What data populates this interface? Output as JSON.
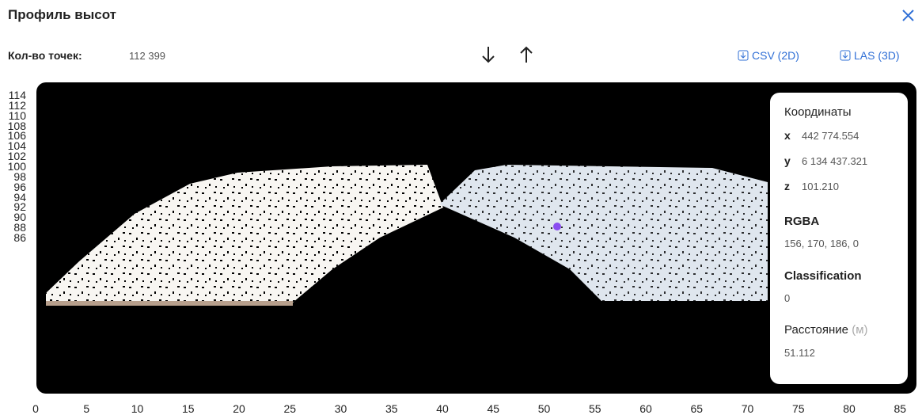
{
  "header": {
    "title": "Профиль высот"
  },
  "toolbar": {
    "count_label": "Кол-во точек:",
    "count_value": "112 399",
    "exports": [
      "CSV (2D)",
      "LAS (3D)"
    ]
  },
  "plot": {
    "y_axis": [
      114,
      112,
      110,
      108,
      106,
      104,
      102,
      100,
      98,
      96,
      94,
      92,
      90,
      88,
      86
    ],
    "x_axis": [
      0,
      5,
      10,
      15,
      20,
      25,
      30,
      35,
      40,
      45,
      50,
      55,
      60,
      65,
      70,
      75,
      80,
      85
    ]
  },
  "info": {
    "coords_title": "Координаты",
    "coords": [
      {
        "axis": "x",
        "value": "442 774.554"
      },
      {
        "axis": "y",
        "value": "6 134 437.321"
      },
      {
        "axis": "z",
        "value": "101.210"
      }
    ],
    "rgba_title": "RGBA",
    "rgba": "156, 170, 186, 0",
    "class_title": "Classification",
    "class_value": "0",
    "distance_title": "Расстояние",
    "distance_unit": "(м)",
    "distance_value": "51.112"
  }
}
